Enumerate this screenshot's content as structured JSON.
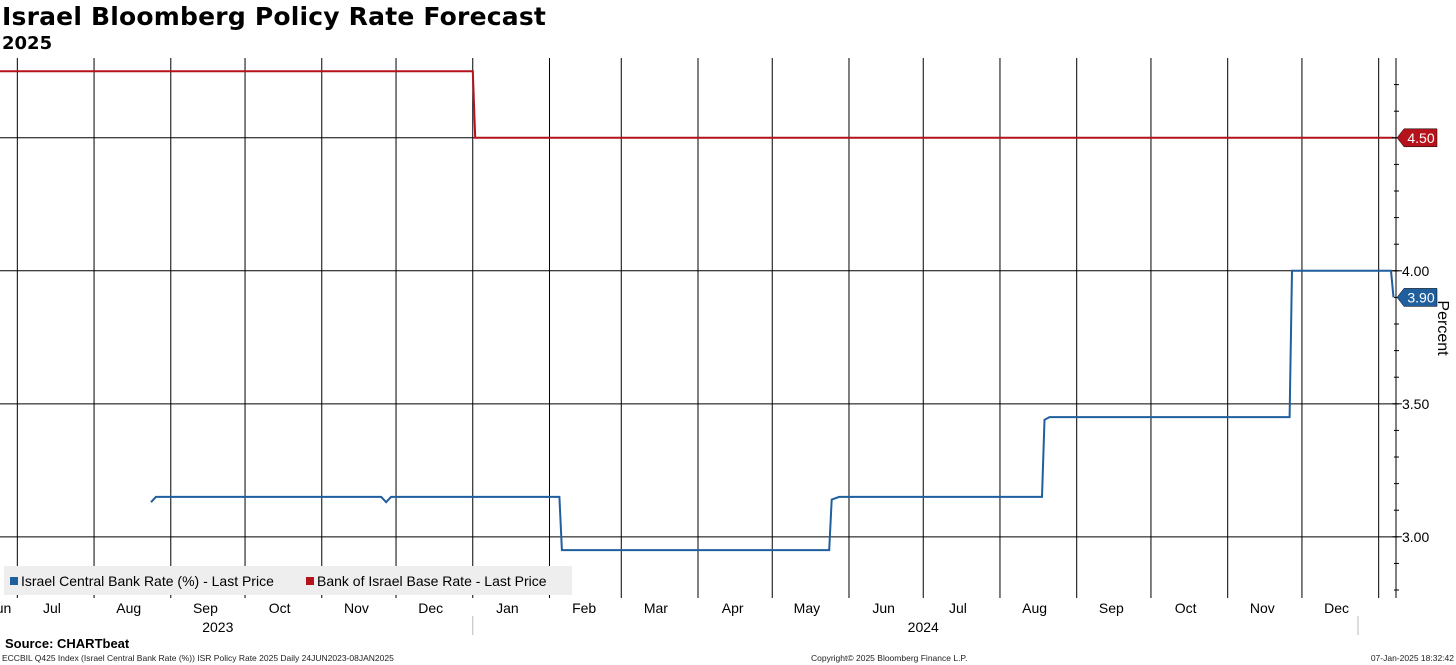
{
  "title": "Israel Bloomberg Policy Rate Forecast",
  "subtitle": "2025",
  "source": "Source: CHARTbeat",
  "footer": {
    "left": "ECCBIL Q425 Index (Israel Central Bank Rate (%)) ISR Policy Rate 2025  Daily 24JUN2023-08JAN2025",
    "center": "Copyright© 2025 Bloomberg Finance L.P.",
    "right": "07-Jan-2025 18:32:42"
  },
  "colors": {
    "israel_central_bank_rate": "#1f5f9e",
    "bank_of_israel_base_rate": "#b5121b",
    "grid": "#000000",
    "legend_bg": "#eeeeee"
  },
  "chart_data": {
    "type": "line",
    "ylabel": "Percent",
    "y_axis_side": "right",
    "ylim": [
      2.77,
      4.8
    ],
    "yticks": [
      "3.00",
      "3.50",
      "4.00",
      "4.50"
    ],
    "xlim": [
      "2023-06-24",
      "2025-01-08"
    ],
    "x_month_labels": [
      {
        "label": "Jun",
        "date": "2023-06-24"
      },
      {
        "label": "Jul",
        "date": "2023-07-15"
      },
      {
        "label": "Aug",
        "date": "2023-08-15"
      },
      {
        "label": "Sep",
        "date": "2023-09-15"
      },
      {
        "label": "Oct",
        "date": "2023-10-15"
      },
      {
        "label": "Nov",
        "date": "2023-11-15"
      },
      {
        "label": "Dec",
        "date": "2023-12-15"
      },
      {
        "label": "Jan",
        "date": "2024-01-15"
      },
      {
        "label": "Feb",
        "date": "2024-02-15"
      },
      {
        "label": "Mar",
        "date": "2024-03-15"
      },
      {
        "label": "Apr",
        "date": "2024-04-15"
      },
      {
        "label": "May",
        "date": "2024-05-15"
      },
      {
        "label": "Jun",
        "date": "2024-06-15"
      },
      {
        "label": "Jul",
        "date": "2024-07-15"
      },
      {
        "label": "Aug",
        "date": "2024-08-15"
      },
      {
        "label": "Sep",
        "date": "2024-09-15"
      },
      {
        "label": "Oct",
        "date": "2024-10-15"
      },
      {
        "label": "Nov",
        "date": "2024-11-15"
      },
      {
        "label": "Dec",
        "date": "2024-12-15"
      }
    ],
    "vertical_gridlines": [
      "2023-07-01",
      "2023-08-01",
      "2023-09-01",
      "2023-10-01",
      "2023-11-01",
      "2023-12-01",
      "2024-01-01",
      "2024-02-01",
      "2024-03-01",
      "2024-04-01",
      "2024-05-01",
      "2024-06-01",
      "2024-07-01",
      "2024-08-01",
      "2024-09-01",
      "2024-10-01",
      "2024-11-01",
      "2024-12-01",
      "2025-01-01"
    ],
    "year_labels": [
      {
        "label": "2023",
        "date": "2023-09-20"
      },
      {
        "label": "2024",
        "date": "2024-07-01"
      }
    ],
    "year_divider": "2024-01-01",
    "series": [
      {
        "name": "Israel Central Bank Rate (%) - Last Price",
        "color_key": "israel_central_bank_rate",
        "last_value": "3.90",
        "points": [
          {
            "x": "2023-08-24",
            "y": 3.13
          },
          {
            "x": "2023-08-26",
            "y": 3.15
          },
          {
            "x": "2023-11-25",
            "y": 3.15
          },
          {
            "x": "2023-11-27",
            "y": 3.13
          },
          {
            "x": "2023-11-29",
            "y": 3.15
          },
          {
            "x": "2024-02-05",
            "y": 3.15
          },
          {
            "x": "2024-02-06",
            "y": 2.95
          },
          {
            "x": "2024-05-24",
            "y": 2.95
          },
          {
            "x": "2024-05-25",
            "y": 3.14
          },
          {
            "x": "2024-05-28",
            "y": 3.15
          },
          {
            "x": "2024-08-18",
            "y": 3.15
          },
          {
            "x": "2024-08-19",
            "y": 3.44
          },
          {
            "x": "2024-08-21",
            "y": 3.45
          },
          {
            "x": "2024-11-26",
            "y": 3.45
          },
          {
            "x": "2024-11-27",
            "y": 4.0
          },
          {
            "x": "2025-01-06",
            "y": 4.0
          },
          {
            "x": "2025-01-07",
            "y": 3.9
          }
        ]
      },
      {
        "name": "Bank of Israel Base Rate - Last Price",
        "color_key": "bank_of_israel_base_rate",
        "last_value": "4.50",
        "points": [
          {
            "x": "2023-06-24",
            "y": 4.75
          },
          {
            "x": "2024-01-01",
            "y": 4.75
          },
          {
            "x": "2024-01-02",
            "y": 4.5
          },
          {
            "x": "2025-01-07",
            "y": 4.5
          }
        ]
      }
    ]
  }
}
